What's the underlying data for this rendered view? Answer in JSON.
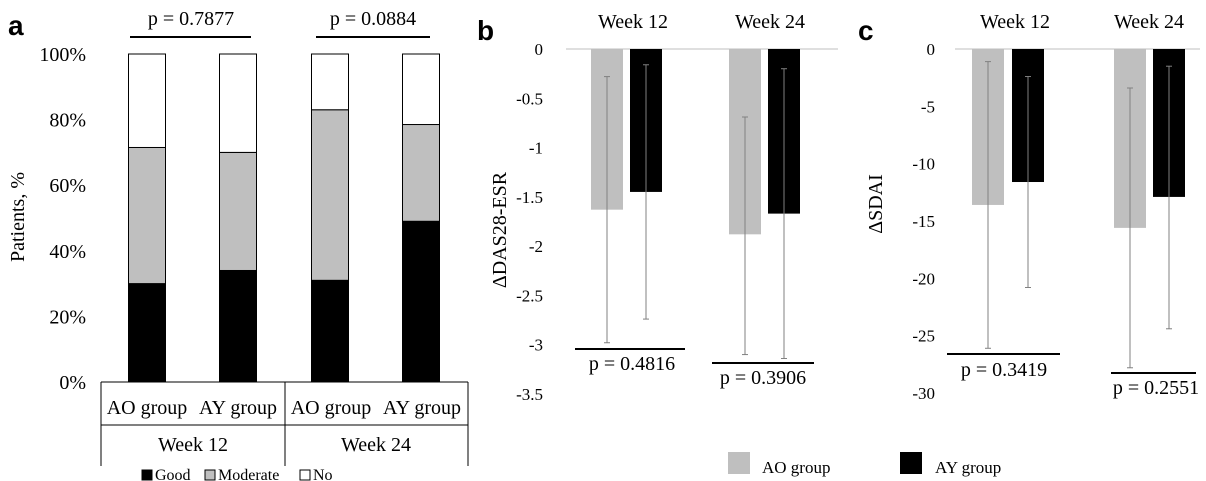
{
  "colors": {
    "good": "#000000",
    "moderate": "#bfbfbf",
    "no": "#ffffff",
    "ao": "#bfbfbf",
    "ay": "#000000",
    "axis": "#bfbfbf",
    "errorbar": "#808080"
  },
  "chart_data": [
    {
      "panel": "a",
      "type": "bar",
      "stacked": true,
      "ylabel": "Patients, %",
      "ylim": [
        0,
        100
      ],
      "yticks": [
        "0%",
        "20%",
        "40%",
        "60%",
        "80%",
        "100%"
      ],
      "groups": [
        "Week 12",
        "Week 24"
      ],
      "categories": [
        "AO group",
        "AY group",
        "AO group",
        "AY group"
      ],
      "series": [
        {
          "name": "Good",
          "color": "#000000",
          "values": [
            30,
            34,
            31,
            49
          ]
        },
        {
          "name": "Moderate",
          "color": "#bfbfbf",
          "values": [
            41.5,
            36,
            52,
            29.5
          ]
        },
        {
          "name": "No",
          "color": "#ffffff",
          "values": [
            28.5,
            30,
            17,
            21.5
          ]
        }
      ],
      "annotations": [
        "p = 0.7877",
        "p = 0.0884"
      ]
    },
    {
      "panel": "b",
      "type": "bar",
      "ylabel": "ΔDAS28-ESR",
      "ylim": [
        -3.5,
        0
      ],
      "yticks": [
        "0",
        "-0.5",
        "-1",
        "-1.5",
        "-2",
        "-2.5",
        "-3",
        "-3.5"
      ],
      "categories": [
        "Week 12",
        "Week 24"
      ],
      "series": [
        {
          "name": "AO group",
          "color": "#bfbfbf",
          "values": [
            -1.63,
            -1.88
          ],
          "error_low": [
            -2.98,
            -3.1
          ],
          "error_high": [
            -0.28,
            -0.69
          ]
        },
        {
          "name": "AY group",
          "color": "#000000",
          "values": [
            -1.45,
            -1.67
          ],
          "error_low": [
            -2.74,
            -3.14
          ],
          "error_high": [
            -0.16,
            -0.2
          ]
        }
      ],
      "annotations": [
        "p = 0.4816",
        "p = 0.3906"
      ]
    },
    {
      "panel": "c",
      "type": "bar",
      "ylabel": "ΔSDAI",
      "ylim": [
        -30,
        0
      ],
      "yticks": [
        "0",
        "-5",
        "-10",
        "-15",
        "-20",
        "-25",
        "-30"
      ],
      "categories": [
        "Week 12",
        "Week 24"
      ],
      "series": [
        {
          "name": "AO group",
          "color": "#bfbfbf",
          "values": [
            -13.6,
            -15.6
          ],
          "error_low": [
            -26.1,
            -27.8
          ],
          "error_high": [
            -1.1,
            -3.4
          ]
        },
        {
          "name": "AY group",
          "color": "#000000",
          "values": [
            -11.6,
            -12.9
          ],
          "error_low": [
            -20.8,
            -24.4
          ],
          "error_high": [
            -2.4,
            -1.5
          ]
        }
      ],
      "annotations": [
        "p = 0.3419",
        "p = 0.2551"
      ]
    }
  ],
  "legend_a": [
    "Good",
    "Moderate",
    "No"
  ],
  "legend_bc": [
    "AO group",
    "AY group"
  ]
}
